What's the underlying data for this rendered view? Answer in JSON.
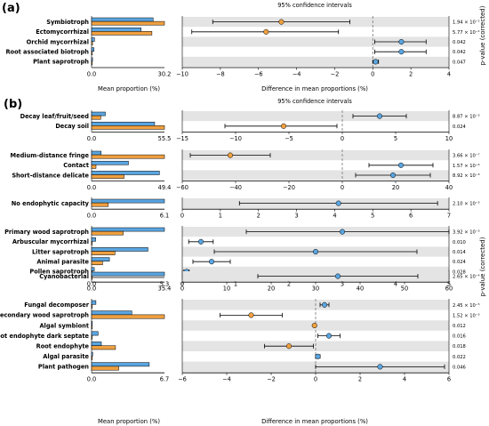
{
  "figure": {
    "panel_a_label": "(a)",
    "panel_b_label": "(b)",
    "ci_header": "95% confidence intervals",
    "bar_xlabel": "Mean proportion (%)",
    "diff_xlabel": "Difference in mean proportions (%)",
    "pvalue_label": "p-value (corrected)"
  },
  "colors": {
    "group1": "#5aa5e0",
    "group2": "#f0a040",
    "shade": "#e4e4e4",
    "ci_line": "#000000"
  },
  "chart_data": [
    {
      "type": "bar",
      "panel": "a",
      "bar_max_label": "30.2",
      "bar_max": 30.2,
      "diff_ticks": [
        "−10",
        "−8",
        "−6",
        "−4",
        "−2",
        "0",
        "2",
        "4"
      ],
      "diff_range": [
        -10,
        4
      ],
      "categories": [
        "Symbiotroph",
        "Ectomycorrhizal",
        "Orchid mycorrhizal",
        "Root associated biotroph",
        "Plant saprotroph"
      ],
      "series": [
        {
          "values": [
            25.5,
            20.5,
            1.2,
            1.0,
            0.4
          ]
        },
        {
          "values": [
            30.2,
            25.0,
            0.4,
            0.3,
            0.2
          ]
        }
      ],
      "differences": [
        -4.8,
        -5.6,
        1.5,
        1.5,
        0.15
      ],
      "ci": [
        [
          -8.4,
          -1.2
        ],
        [
          -9.5,
          -1.8
        ],
        [
          0.1,
          2.8
        ],
        [
          0.1,
          2.8
        ],
        [
          0.0,
          0.3
        ]
      ],
      "pvalues": [
        "1.94 × 10⁻²",
        "5.77 × 10⁻²",
        "0.042",
        "0.042",
        "0.047"
      ]
    },
    {
      "type": "bar",
      "panel": "b1",
      "bar_max_label": "55.5",
      "bar_max": 55.5,
      "diff_ticks": [
        "−15",
        "−10",
        "−5",
        "0",
        "5",
        "10"
      ],
      "diff_range": [
        -15,
        10
      ],
      "categories": [
        "Decay leaf/fruit/seed",
        "Decay soil"
      ],
      "series": [
        {
          "values": [
            10.5,
            48.0
          ]
        },
        {
          "values": [
            7.0,
            55.5
          ]
        }
      ],
      "differences": [
        3.5,
        -5.5
      ],
      "ci": [
        [
          1.0,
          6.0
        ],
        [
          -11.0,
          -0.5
        ]
      ],
      "pvalues": [
        "8.87 × 10⁻³",
        "0.024"
      ]
    },
    {
      "type": "bar",
      "panel": "b2",
      "bar_max_label": "49.4",
      "bar_max": 49.4,
      "diff_ticks": [
        "−60",
        "−40",
        "−20",
        "0",
        "20",
        "40"
      ],
      "diff_range": [
        -60,
        40
      ],
      "categories": [
        "Medium-distance fringe",
        "Contact",
        "Short-distance delicate"
      ],
      "series": [
        {
          "values": [
            6.5,
            25.0,
            46.0
          ]
        },
        {
          "values": [
            49.4,
            3.0,
            22.0
          ]
        }
      ],
      "differences": [
        -42.0,
        22.0,
        19.0
      ],
      "ci": [
        [
          -57.0,
          -27.0
        ],
        [
          10.0,
          34.0
        ],
        [
          5.0,
          33.0
        ]
      ],
      "pvalues": [
        "3.66 × 10⁻⁷",
        "1.57 × 10⁻⁴",
        "8.92 × 10⁻³"
      ]
    },
    {
      "type": "bar",
      "panel": "b3",
      "bar_max_label": "6.1",
      "bar_max": 6.1,
      "diff_ticks": [
        "0",
        "1",
        "2",
        "3",
        "4",
        "5",
        "6",
        "7"
      ],
      "diff_range": [
        0,
        7
      ],
      "categories": [
        "No endophytic capacity"
      ],
      "series": [
        {
          "values": [
            6.1
          ]
        },
        {
          "values": [
            1.4
          ]
        }
      ],
      "differences": [
        4.1
      ],
      "ci": [
        [
          1.5,
          6.7
        ]
      ],
      "pvalues": [
        "2.10 × 10⁻³"
      ]
    },
    {
      "type": "bar",
      "panel": "b4",
      "bar_max_label": "5.3",
      "bar_max": 5.3,
      "diff_ticks": [
        "0",
        "1",
        "2",
        "3",
        "4",
        "5"
      ],
      "diff_range": [
        0,
        5
      ],
      "categories": [
        "Primary wood saprotroph",
        "Arbuscular mycorrhizal",
        "Litter saprotroph",
        "Animal parasite",
        "Pollen saprotroph"
      ],
      "series": [
        {
          "values": [
            5.3,
            0.3,
            4.1,
            1.3,
            0.2
          ]
        },
        {
          "values": [
            2.3,
            0.02,
            1.7,
            0.8,
            0.02
          ]
        }
      ],
      "differences": [
        3.0,
        0.35,
        2.5,
        0.55,
        0.08
      ],
      "ci": [
        [
          1.2,
          5.0
        ],
        [
          0.12,
          0.58
        ],
        [
          0.6,
          4.4
        ],
        [
          0.2,
          0.9
        ],
        [
          0.03,
          0.13
        ]
      ],
      "pvalues": [
        "3.92 × 10⁻³",
        "0.010",
        "0.014",
        "0.024",
        "0.028"
      ]
    },
    {
      "type": "bar",
      "panel": "b5",
      "bar_max_label": "35.4",
      "bar_max": 35.4,
      "diff_ticks": [
        "0",
        "10",
        "20",
        "30",
        "40",
        "50",
        "60"
      ],
      "diff_range": [
        0,
        60
      ],
      "categories": [
        "Cyanobacterial"
      ],
      "series": [
        {
          "values": [
            35.4
          ]
        },
        {
          "values": [
            0.1
          ]
        }
      ],
      "differences": [
        35.0
      ],
      "ci": [
        [
          17.0,
          53.0
        ]
      ],
      "pvalues": [
        "2.65 × 10⁻⁴"
      ]
    },
    {
      "type": "bar",
      "panel": "b6",
      "bar_max_label": "6.7",
      "bar_max": 6.7,
      "diff_ticks": [
        "−6",
        "−4",
        "−2",
        "0",
        "2",
        "4",
        "6"
      ],
      "diff_range": [
        -6,
        6
      ],
      "categories": [
        "Fungal decomposer",
        "Secondary wood saprotroph",
        "Algal symbiont",
        "Root endophyte dark septate",
        "Root endophyte",
        "Algal parasite",
        "Plant pathogen"
      ],
      "series": [
        {
          "values": [
            0.4,
            3.7,
            0.0,
            0.6,
            0.9,
            0.1,
            5.3
          ]
        },
        {
          "values": [
            0.05,
            6.7,
            0.05,
            0.05,
            2.2,
            0.05,
            2.5
          ]
        }
      ],
      "differences": [
        0.4,
        -2.9,
        -0.05,
        0.6,
        -1.2,
        0.1,
        2.9
      ],
      "ci": [
        [
          0.2,
          0.6
        ],
        [
          -4.3,
          -1.5
        ],
        [
          -0.1,
          0.0
        ],
        [
          0.1,
          1.1
        ],
        [
          -2.3,
          -0.1
        ],
        [
          0.0,
          0.2
        ],
        [
          0.0,
          5.8
        ]
      ],
      "pvalues": [
        "2.45 × 10⁻⁵",
        "1.52 × 10⁻³",
        "0.012",
        "0.016",
        "0.018",
        "0.022",
        "0.046"
      ]
    }
  ]
}
